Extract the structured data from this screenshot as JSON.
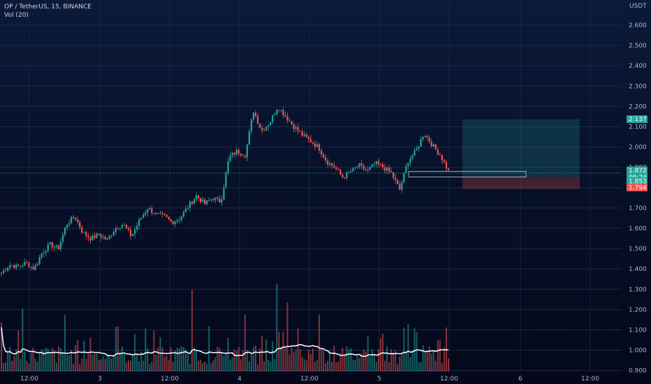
{
  "header": {
    "symbol_line": "OP / TetherUS, 15, BINANCE",
    "volume_line": "Vol (20)",
    "currency": "USDT"
  },
  "colors": {
    "up": "#26a69a",
    "down": "#ef5350",
    "volume_ma": "#ffffff",
    "target_zone": "#26a69a",
    "stop_zone": "#ef5350"
  },
  "price_tags": {
    "target": "2.137",
    "current": "1.872",
    "countdown": "09:24",
    "entry": "1.853",
    "stop": "1.794"
  },
  "chart_data": {
    "type": "candlestick",
    "symbol": "OP / TetherUS",
    "interval": "15",
    "exchange": "BINANCE",
    "y_ticks": [
      "2.600",
      "2.500",
      "2.400",
      "2.300",
      "2.200",
      "2.100",
      "2.000",
      "1.900",
      "1.800",
      "1.700",
      "1.600",
      "1.500",
      "1.400",
      "1.300",
      "1.200",
      "1.100",
      "1.000",
      "0.900"
    ],
    "x_ticks": [
      "12:00",
      "3",
      "12:00",
      "4",
      "12:00",
      "5",
      "12:00",
      "6",
      "12:00"
    ],
    "price_path": [
      1.38,
      1.42,
      1.41,
      1.43,
      1.4,
      1.48,
      1.52,
      1.5,
      1.62,
      1.66,
      1.58,
      1.55,
      1.57,
      1.54,
      1.6,
      1.62,
      1.56,
      1.64,
      1.7,
      1.67,
      1.66,
      1.63,
      1.65,
      1.71,
      1.76,
      1.72,
      1.75,
      1.73,
      1.95,
      1.98,
      1.96,
      2.18,
      2.08,
      2.12,
      2.2,
      2.15,
      2.1,
      2.06,
      2.03,
      2.0,
      1.93,
      1.9,
      1.85,
      1.88,
      1.91,
      1.88,
      1.92,
      1.9,
      1.87,
      1.79,
      1.93,
      1.98,
      2.07,
      2.01,
      1.96,
      1.88
    ],
    "trade_setup": {
      "target": 2.137,
      "entry": 1.853,
      "stop": 1.794,
      "last": 1.872
    }
  }
}
